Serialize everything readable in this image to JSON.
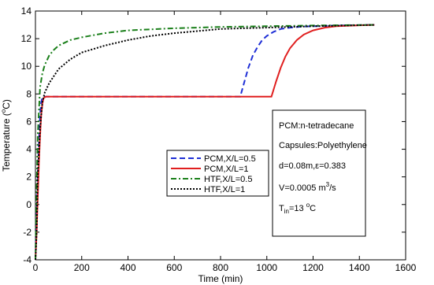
{
  "chart_data": {
    "type": "line",
    "title": "",
    "xlabel": "Time (min)",
    "ylabel_parts": [
      "Temperature (",
      "o",
      "C)"
    ],
    "xlim": [
      0,
      1600
    ],
    "ylim": [
      -4,
      14
    ],
    "xticks": [
      0,
      200,
      400,
      600,
      800,
      1000,
      1200,
      1400,
      1600
    ],
    "yticks": [
      -4,
      -2,
      0,
      2,
      4,
      6,
      8,
      10,
      12,
      14
    ],
    "grid": false,
    "legend_position": "center",
    "series": [
      {
        "name": "PCM,X/L=0.5",
        "color": "#1f2fd6",
        "dash": "dashed",
        "x": [
          0,
          5,
          10,
          15,
          20,
          25,
          30,
          40,
          200,
          400,
          600,
          800,
          885,
          900,
          920,
          940,
          960,
          980,
          1000,
          1030,
          1060,
          1100,
          1150,
          1200,
          1300,
          1400,
          1465
        ],
        "y": [
          -4,
          -1,
          2,
          4.5,
          6.5,
          7.4,
          7.75,
          7.8,
          7.8,
          7.8,
          7.8,
          7.8,
          7.8,
          8.7,
          9.9,
          10.8,
          11.4,
          11.9,
          12.2,
          12.5,
          12.7,
          12.8,
          12.87,
          12.9,
          12.95,
          12.98,
          13
        ]
      },
      {
        "name": "PCM,X/L=1",
        "color": "#e01f1f",
        "dash": "solid",
        "x": [
          0,
          5,
          10,
          15,
          20,
          25,
          30,
          35,
          45,
          200,
          400,
          600,
          800,
          1000,
          1020,
          1040,
          1060,
          1080,
          1100,
          1130,
          1160,
          1200,
          1250,
          1300,
          1400,
          1465
        ],
        "y": [
          -4,
          -2,
          0.5,
          3,
          5,
          6.5,
          7.3,
          7.7,
          7.8,
          7.8,
          7.8,
          7.8,
          7.8,
          7.8,
          7.8,
          8.9,
          9.9,
          10.7,
          11.3,
          11.9,
          12.3,
          12.6,
          12.8,
          12.9,
          12.97,
          13
        ]
      },
      {
        "name": "HTF,X/L=0.5",
        "color": "#1a7f1a",
        "dash": "dashdot",
        "x": [
          0,
          5,
          10,
          20,
          30,
          40,
          60,
          80,
          100,
          150,
          200,
          300,
          400,
          600,
          800,
          1000,
          1200,
          1465
        ],
        "y": [
          -4,
          1,
          5,
          8.5,
          9.5,
          10.1,
          10.8,
          11.2,
          11.5,
          11.9,
          12.1,
          12.4,
          12.6,
          12.75,
          12.85,
          12.9,
          12.95,
          13
        ]
      },
      {
        "name": "HTF,X/L=1",
        "color": "#000000",
        "dash": "dotted",
        "x": [
          0,
          5,
          10,
          20,
          30,
          40,
          60,
          80,
          100,
          150,
          200,
          300,
          400,
          500,
          600,
          700,
          800,
          900,
          1000,
          1200,
          1465
        ],
        "y": [
          -4,
          -2,
          2,
          5.5,
          7.4,
          8.1,
          8.8,
          9.3,
          9.8,
          10.5,
          11,
          11.5,
          11.9,
          12.2,
          12.4,
          12.55,
          12.7,
          12.75,
          12.8,
          12.9,
          13
        ]
      }
    ],
    "annotation": {
      "line1": "PCM:n-tetradecane",
      "line2": "Capsules:Polyethylene",
      "line3_a": "d=0.08m,",
      "line3_eps": "ε",
      "line3_b": "=0.383",
      "line4_a": "V=0.0005 m",
      "line4_sup": "3",
      "line4_b": "/s",
      "line5_a": "T",
      "line5_sub": "in",
      "line5_b": "=13 ",
      "line5_sup": "o",
      "line5_c": "C"
    }
  }
}
